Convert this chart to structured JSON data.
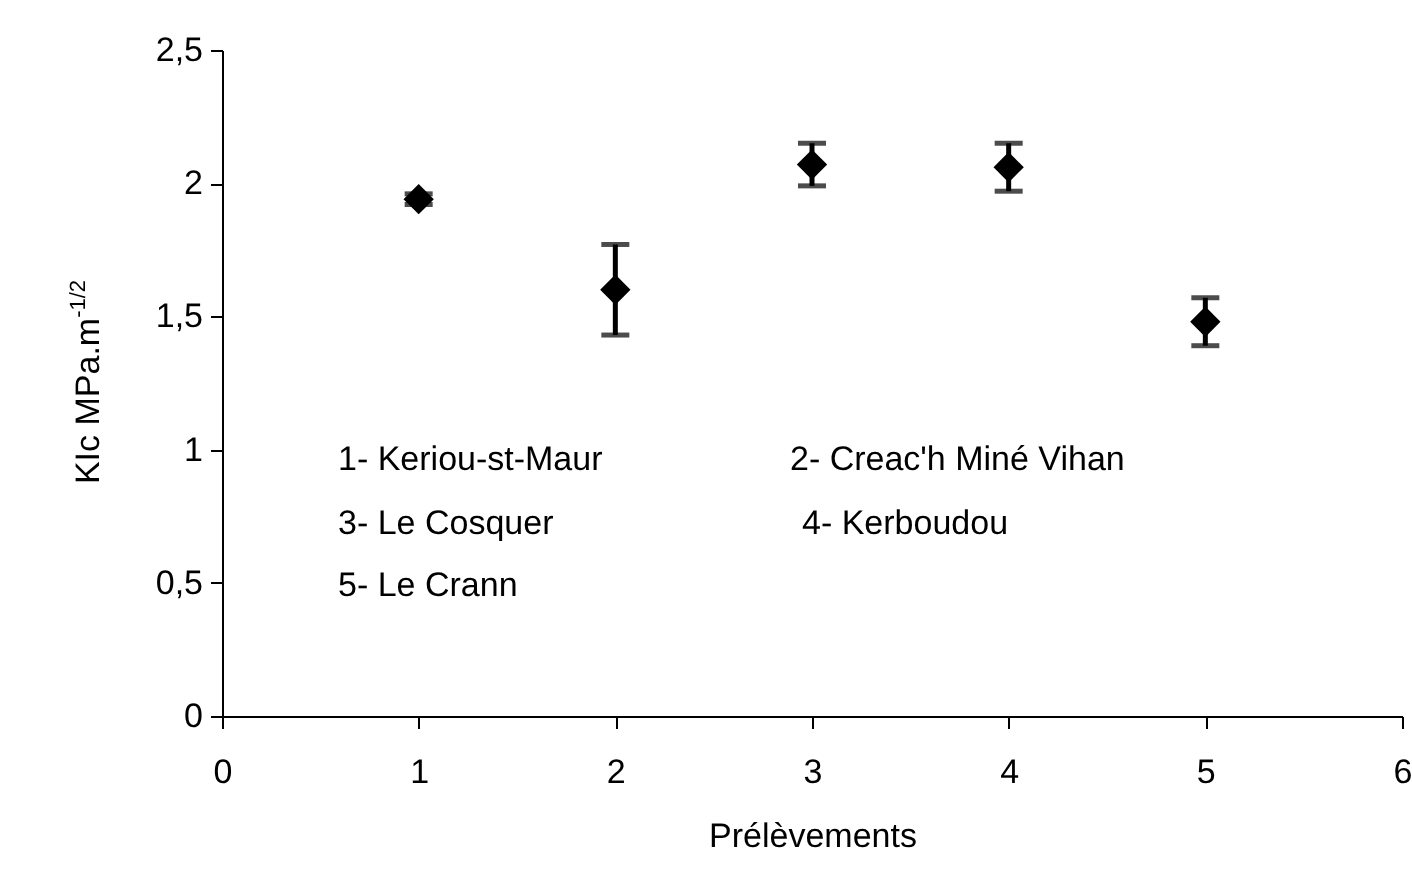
{
  "chart_data": {
    "type": "scatter",
    "xlabel": "Prélèvements",
    "ylabel": "KIc MPa.m$^{-1/2}$",
    "x": [
      1,
      2,
      3,
      4,
      5
    ],
    "values": [
      1.94,
      1.6,
      2.07,
      2.06,
      1.48
    ],
    "errors": [
      0.02,
      0.17,
      0.08,
      0.09,
      0.09
    ],
    "color": "#000000",
    "marker": "diamond",
    "xlim": [
      0,
      6
    ],
    "xticks": [
      0,
      1,
      2,
      3,
      4,
      5,
      6
    ],
    "ylim": [
      0,
      2.5
    ],
    "yticks": [
      0,
      {
        "value": 0.5,
        "label": "0,5"
      },
      1,
      {
        "value": 1.5,
        "label": "1,5"
      },
      2,
      {
        "value": 2.5,
        "label": "2,5"
      }
    ],
    "grid": false,
    "annotations": [
      "1- Keriou-st-Maur",
      "2- Creac'h Miné Vihan",
      "3- Le Cosquer",
      "4- Kerboudou",
      "5- Le Crann"
    ]
  }
}
